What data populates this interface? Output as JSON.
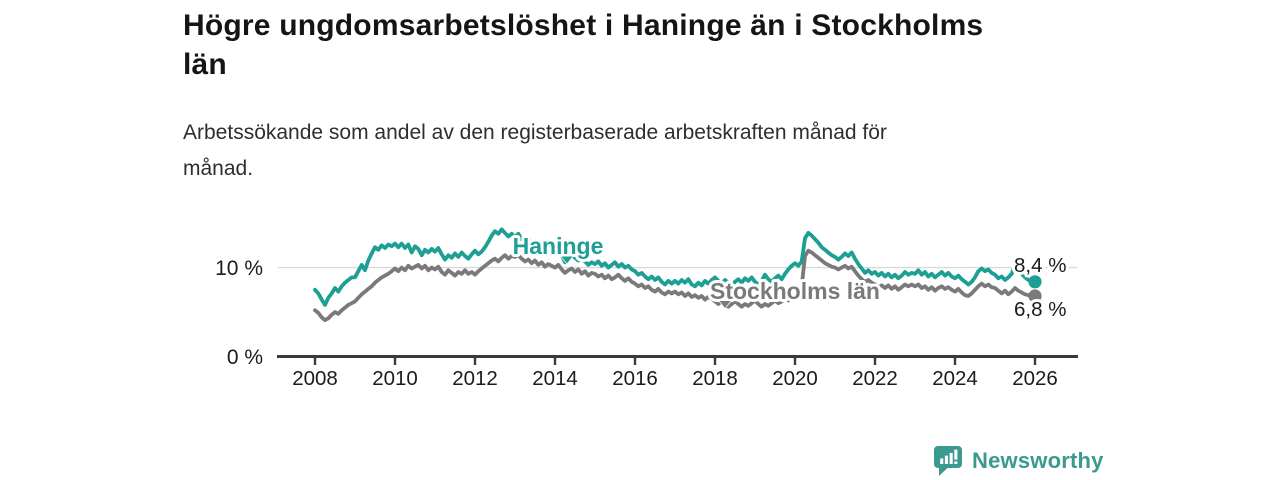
{
  "header": {
    "title_line1": "Högre ungdomsarbetslöshet i Haninge än i Stockholms",
    "title_line2": "län",
    "subtitle_line1": "Arbetssökande som andel av den registerbaserade arbetskraften månad för",
    "subtitle_line2": "månad."
  },
  "chart_data": {
    "type": "line",
    "title": "Högre ungdomsarbetslöshet i Haninge än i Stockholms län",
    "subtitle": "Arbetssökande som andel av den registerbaserade arbetskraften månad för månad.",
    "unit": "%",
    "x_start": "2008-01",
    "x_end": "2026-01",
    "x_step_months": 1,
    "x_tick_labels": [
      "2008",
      "2010",
      "2012",
      "2014",
      "2016",
      "2018",
      "2020",
      "2022",
      "2024",
      "2026"
    ],
    "y_axis": {
      "ticks": [
        {
          "value": 0,
          "label": "0 %"
        },
        {
          "value": 10,
          "label": "10 %"
        }
      ],
      "range": [
        0,
        15
      ],
      "gridline_at": 10
    },
    "legend_position": "inline-labels-on-lines",
    "grid": "horizontal-single",
    "series": [
      {
        "name": "Stockholms län",
        "slug": "stockholms-lan",
        "color": "#7a7a7a",
        "end_value": 6.8,
        "end_label": "6,8 %",
        "values": [
          5.2,
          4.9,
          4.4,
          4.1,
          4.3,
          4.7,
          5.0,
          4.8,
          5.2,
          5.5,
          5.8,
          6.0,
          6.2,
          6.6,
          7.0,
          7.3,
          7.6,
          7.9,
          8.3,
          8.6,
          8.9,
          9.1,
          9.3,
          9.6,
          9.9,
          9.6,
          10.0,
          9.7,
          10.2,
          9.9,
          10.1,
          10.3,
          9.9,
          10.2,
          9.7,
          10.0,
          9.8,
          10.1,
          9.5,
          9.2,
          9.7,
          9.4,
          9.1,
          9.5,
          9.3,
          9.7,
          9.3,
          9.5,
          9.2,
          9.6,
          9.9,
          10.2,
          10.5,
          10.8,
          11.0,
          10.7,
          11.1,
          11.4,
          11.0,
          11.3,
          11.2,
          11.4,
          11.0,
          10.7,
          10.9,
          10.5,
          10.8,
          10.3,
          10.6,
          10.1,
          10.4,
          10.2,
          10.0,
          10.3,
          9.8,
          9.4,
          9.7,
          9.9,
          9.5,
          9.8,
          9.3,
          9.6,
          9.1,
          9.4,
          9.3,
          9.0,
          9.2,
          8.8,
          9.1,
          8.7,
          8.9,
          9.2,
          8.8,
          8.5,
          8.8,
          8.4,
          8.2,
          7.9,
          8.1,
          7.7,
          7.9,
          7.5,
          7.3,
          7.6,
          7.2,
          7.0,
          7.3,
          7.1,
          7.3,
          7.0,
          7.2,
          6.8,
          7.1,
          6.7,
          6.9,
          6.6,
          6.8,
          6.4,
          6.7,
          6.5,
          6.2,
          5.9,
          6.2,
          5.8,
          5.6,
          5.9,
          6.2,
          5.9,
          5.6,
          5.9,
          5.7,
          6.0,
          6.3,
          5.9,
          5.6,
          5.9,
          5.7,
          6.0,
          6.3,
          6.0,
          6.2,
          6.5,
          6.3,
          6.6,
          6.9,
          7.2,
          7.9,
          11.3,
          11.9,
          11.7,
          11.4,
          11.1,
          10.8,
          10.5,
          10.3,
          10.1,
          10.0,
          9.8,
          10.0,
          10.2,
          9.9,
          10.1,
          9.6,
          9.1,
          8.7,
          8.4,
          8.6,
          8.3,
          8.1,
          7.8,
          8.0,
          7.7,
          8.0,
          7.6,
          7.9,
          7.5,
          7.8,
          8.1,
          7.9,
          8.1,
          7.9,
          8.1,
          7.7,
          7.9,
          7.5,
          7.8,
          7.4,
          7.7,
          7.9,
          7.6,
          7.8,
          7.5,
          7.3,
          7.6,
          7.2,
          6.9,
          6.8,
          7.1,
          7.5,
          7.9,
          8.2,
          7.9,
          8.1,
          7.8,
          7.7,
          7.4,
          7.1,
          7.4,
          7.0,
          7.3,
          7.7,
          7.4,
          7.2,
          7.0,
          6.9,
          6.9,
          6.8
        ]
      },
      {
        "name": "Haninge",
        "slug": "haninge",
        "color": "#1d9f93",
        "end_value": 8.4,
        "end_label": "8,4 %",
        "values": [
          7.5,
          7.1,
          6.4,
          5.8,
          6.6,
          7.1,
          7.7,
          7.3,
          7.9,
          8.3,
          8.6,
          8.9,
          8.9,
          9.6,
          10.3,
          9.7,
          10.8,
          11.6,
          12.3,
          12.0,
          12.5,
          12.2,
          12.6,
          12.4,
          12.7,
          12.3,
          12.7,
          12.2,
          12.6,
          11.7,
          12.4,
          12.1,
          11.4,
          12.0,
          11.7,
          12.1,
          11.8,
          12.2,
          11.5,
          10.9,
          11.4,
          11.1,
          11.6,
          11.2,
          11.7,
          11.3,
          11.0,
          11.5,
          11.9,
          11.5,
          11.8,
          12.3,
          12.9,
          13.6,
          14.1,
          13.8,
          14.3,
          13.9,
          13.5,
          13.8,
          13.4,
          13.8,
          13.2,
          12.9,
          13.3,
          12.7,
          13.0,
          12.5,
          12.1,
          12.5,
          12.0,
          12.3,
          11.8,
          12.1,
          11.4,
          10.6,
          11.0,
          11.4,
          11.1,
          10.8,
          11.1,
          10.7,
          10.3,
          10.6,
          10.4,
          10.7,
          10.2,
          10.5,
          10.0,
          10.3,
          10.6,
          10.1,
          10.4,
          10.0,
          10.2,
          9.8,
          9.6,
          9.2,
          9.4,
          9.0,
          8.7,
          9.0,
          8.6,
          8.9,
          8.4,
          8.1,
          8.5,
          8.2,
          8.5,
          8.2,
          8.6,
          8.3,
          8.7,
          8.1,
          7.9,
          8.3,
          8.0,
          8.5,
          8.2,
          8.6,
          8.9,
          8.5,
          8.2,
          8.6,
          8.3,
          8.0,
          8.4,
          8.7,
          8.3,
          8.8,
          8.5,
          8.9,
          8.4,
          8.1,
          8.5,
          9.2,
          8.7,
          8.4,
          8.8,
          9.1,
          8.7,
          9.3,
          9.8,
          10.2,
          10.5,
          10.2,
          10.7,
          13.3,
          13.9,
          13.6,
          13.2,
          12.8,
          12.3,
          12.0,
          11.7,
          11.4,
          11.2,
          10.9,
          11.2,
          11.6,
          11.3,
          11.7,
          11.0,
          10.4,
          9.9,
          9.4,
          9.7,
          9.3,
          9.5,
          9.1,
          9.4,
          9.0,
          9.3,
          8.9,
          9.2,
          8.8,
          9.1,
          9.5,
          9.2,
          9.4,
          9.3,
          9.7,
          9.2,
          9.5,
          9.0,
          9.3,
          8.9,
          9.2,
          9.5,
          9.1,
          9.4,
          9.0,
          8.8,
          9.1,
          8.7,
          8.4,
          8.1,
          8.4,
          8.9,
          9.6,
          9.9,
          9.6,
          9.8,
          9.4,
          9.2,
          8.8,
          9.0,
          8.6,
          8.9,
          9.3,
          10.3,
          9.8,
          9.3,
          8.9,
          8.6,
          8.5,
          8.4
        ]
      }
    ],
    "colors": {
      "haninge": "#1d9f93",
      "stockholms_lan": "#7a7a7a",
      "gridline": "#d9d9d9",
      "axis": "#3a3a3a"
    }
  },
  "footer": {
    "brand": "Newsworthy",
    "brand_color": "#3a9a90",
    "logo_icon": "bar-chart-speech-bubble-icon"
  }
}
